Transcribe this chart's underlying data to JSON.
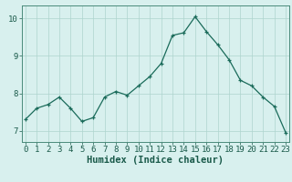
{
  "x": [
    0,
    1,
    2,
    3,
    4,
    5,
    6,
    7,
    8,
    9,
    10,
    11,
    12,
    13,
    14,
    15,
    16,
    17,
    18,
    19,
    20,
    21,
    22,
    23
  ],
  "y": [
    7.3,
    7.6,
    7.7,
    7.9,
    7.6,
    7.25,
    7.35,
    7.9,
    8.05,
    7.95,
    8.2,
    8.45,
    8.8,
    9.55,
    9.62,
    10.05,
    9.65,
    9.3,
    8.9,
    8.35,
    8.2,
    7.9,
    7.65,
    6.95
  ],
  "bg_color": "#d8f0ee",
  "grid_color": "#aed4ce",
  "line_color": "#1a6b5a",
  "marker_color": "#1a6b5a",
  "xlabel": "Humidex (Indice chaleur)",
  "ylabel": "",
  "yticks": [
    7,
    8,
    9,
    10
  ],
  "xticks": [
    0,
    1,
    2,
    3,
    4,
    5,
    6,
    7,
    8,
    9,
    10,
    11,
    12,
    13,
    14,
    15,
    16,
    17,
    18,
    19,
    20,
    21,
    22,
    23
  ],
  "xlim": [
    -0.3,
    23.3
  ],
  "ylim": [
    6.7,
    10.35
  ],
  "axis_color": "#4a8a7a",
  "tick_color": "#1a5a4a",
  "font_size_label": 7.5,
  "font_size_tick": 6.5
}
